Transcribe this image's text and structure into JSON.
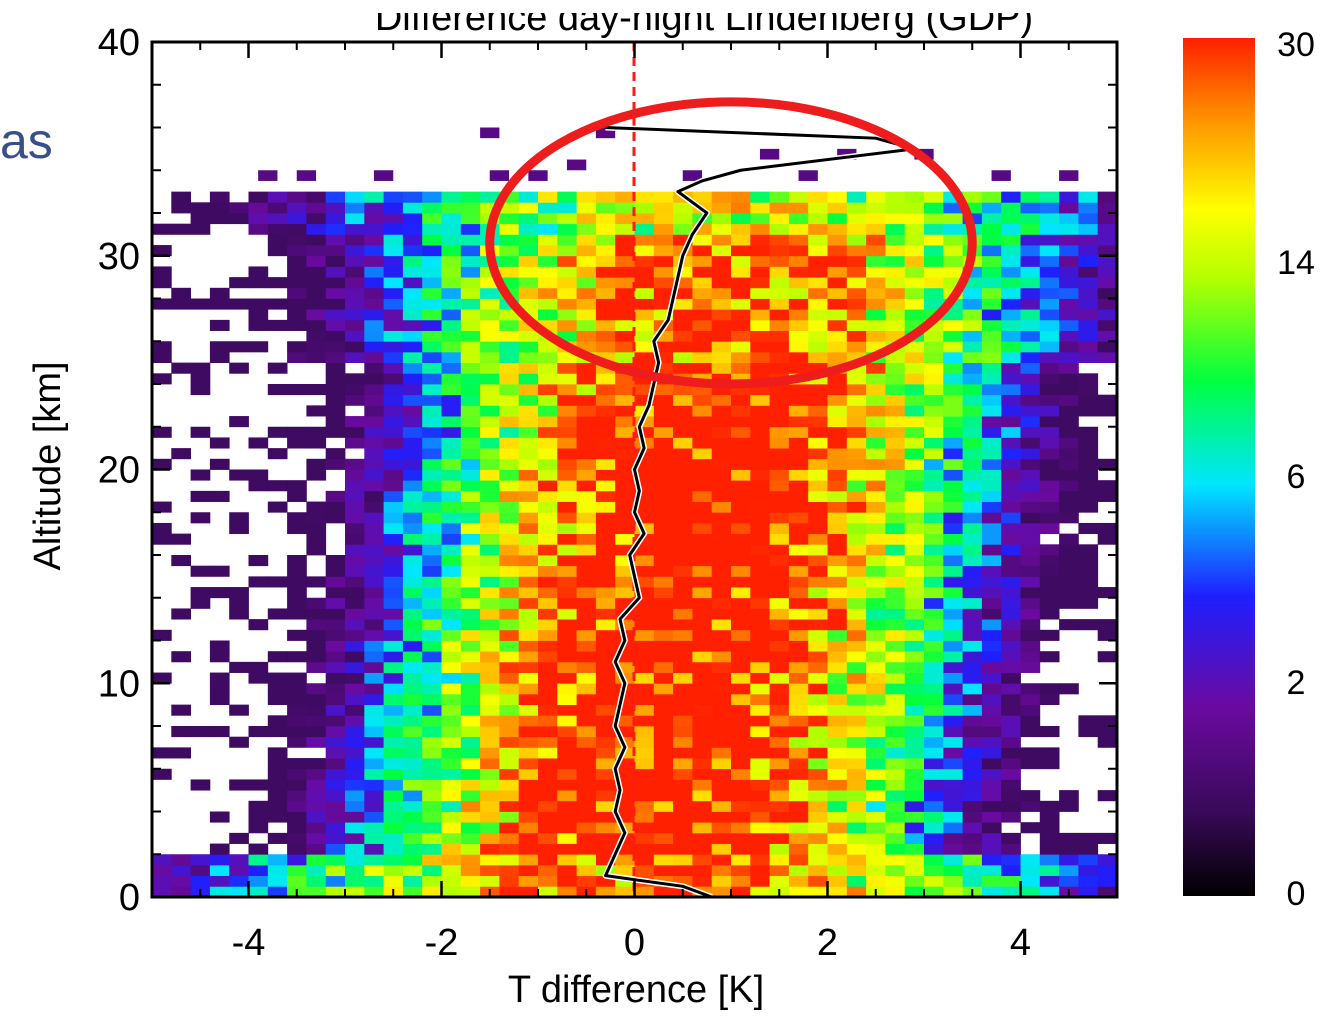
{
  "slide": {
    "side_text": "as"
  },
  "chart_data": {
    "type": "heatmap",
    "title": "Difference day-night Lindenberg (GDP)",
    "xlabel": "T difference [K]",
    "ylabel": "Altitude [km]",
    "xlim": [
      -5,
      5
    ],
    "ylim": [
      0,
      40
    ],
    "x_ticks": [
      "-4",
      "-2",
      "0",
      "2",
      "4"
    ],
    "y_ticks": [
      "0",
      "10",
      "20",
      "30",
      "40"
    ],
    "colorbar": {
      "tick_labels": [
        "0",
        "2",
        "6",
        "14",
        "30"
      ],
      "range": [
        0,
        30
      ],
      "colors": [
        "#000000",
        "#6a0aa0",
        "#1f1fff",
        "#00e6ff",
        "#00ff40",
        "#b4ff00",
        "#ffff00",
        "#ff9800",
        "#ff2000"
      ]
    },
    "bin_width_x_K": 0.2,
    "bin_height_y_km": 0.5,
    "top_of_data_km": 33,
    "reference_line_x": 0,
    "mean_profile": {
      "altitude_km": [
        0,
        0.5,
        1,
        2,
        3,
        4,
        5,
        6,
        7,
        8,
        9,
        10,
        11,
        12,
        13,
        14,
        15,
        16,
        17,
        18,
        19,
        20,
        21,
        22,
        23,
        24,
        25,
        26,
        27,
        28,
        29,
        30,
        31,
        32,
        32.5,
        33,
        33.5,
        34,
        35,
        35.5,
        36
      ],
      "t_diff_K": [
        0.8,
        0.5,
        -0.3,
        -0.2,
        -0.1,
        -0.2,
        -0.15,
        -0.2,
        -0.1,
        -0.2,
        -0.15,
        -0.1,
        -0.2,
        -0.1,
        -0.15,
        0.05,
        0.0,
        -0.05,
        0.1,
        0.0,
        0.05,
        0.0,
        0.1,
        0.05,
        0.15,
        0.2,
        0.25,
        0.2,
        0.35,
        0.4,
        0.45,
        0.5,
        0.6,
        0.75,
        0.6,
        0.45,
        0.7,
        1.1,
        2.9,
        2.5,
        -0.3
      ]
    },
    "annotation": {
      "shape": "ellipse",
      "color": "#ee1c1c",
      "center_x_K": 1.0,
      "center_y_km": 30.6,
      "radius_x_K": 2.5,
      "radius_y_km": 6.6
    }
  }
}
